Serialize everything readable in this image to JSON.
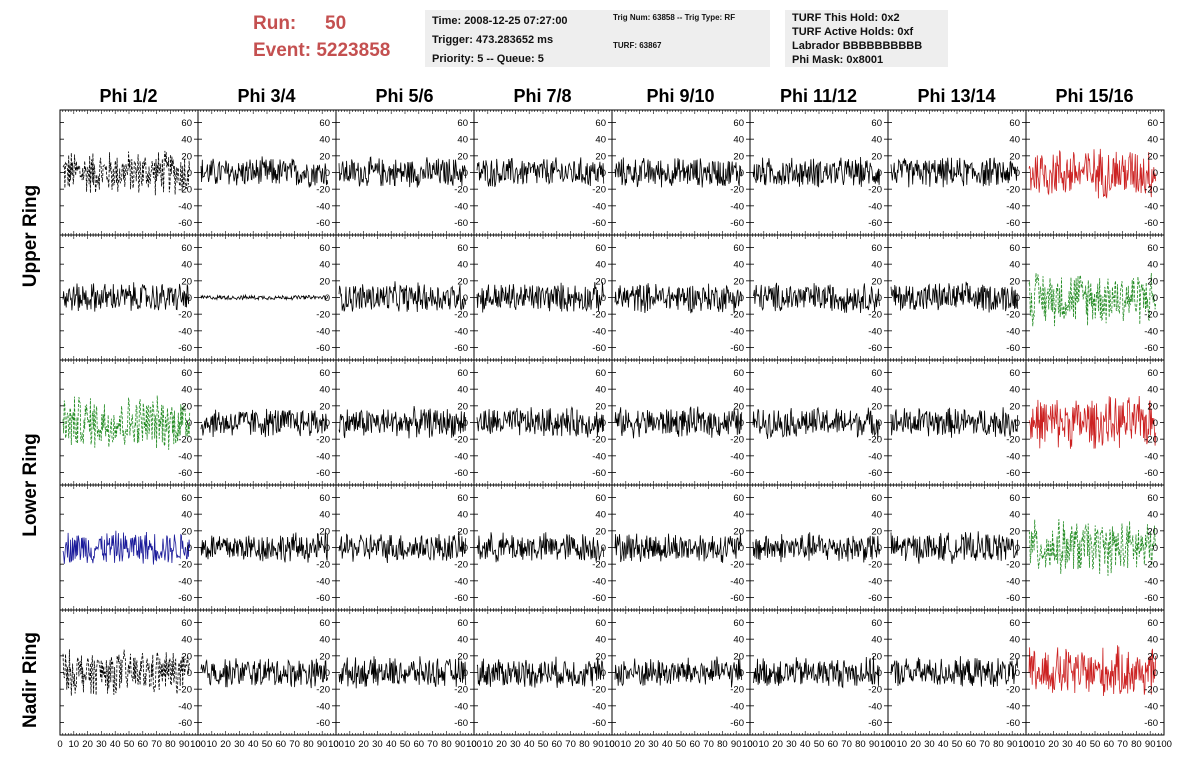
{
  "header": {
    "run_label": "Run:",
    "run_value": "50",
    "event_label": "Event:",
    "event_value": "5223858",
    "time": "Time: 2008-12-25 07:27:00",
    "trigger": "Trigger: 473.283652 ms",
    "priority_queue": "Priority: 5 -- Queue: 5",
    "trig_num_type": "Trig Num: 63858 -- Trig Type: RF",
    "turf": "TURF: 63867",
    "turf_this_hold": "TURF This Hold: 0x2",
    "turf_active_holds": "TURF Active Holds: 0xf",
    "labrador": "Labrador BBBBBBBBBB",
    "phi_mask": "Phi Mask: 0x8001"
  },
  "columns": [
    "Phi 1/2",
    "Phi 3/4",
    "Phi 5/6",
    "Phi 7/8",
    "Phi 9/10",
    "Phi 11/12",
    "Phi 13/14",
    "Phi 15/16"
  ],
  "row_labels": [
    "Upper Ring",
    "Lower Ring",
    "Nadir Ring"
  ],
  "y_ticks": [
    60,
    40,
    20,
    0,
    -20,
    -40,
    -60
  ],
  "x_ticks": [
    0,
    10,
    20,
    30,
    40,
    50,
    60,
    70,
    80,
    90,
    100
  ],
  "colors": {
    "header_red": "#c45050",
    "info_bg": "#eeeeee",
    "red_trace": "#cc2222",
    "green_trace": "#228b22",
    "blue_trace": "#1a1a9a",
    "black_trace": "#000000"
  },
  "traces": [
    [
      "black-dashed",
      "black",
      "black",
      "black",
      "black",
      "black",
      "black",
      "red"
    ],
    [
      "black",
      "black-small",
      "black",
      "black",
      "black",
      "black",
      "black",
      "green-dashed"
    ],
    [
      "green-dashed",
      "black",
      "black",
      "black",
      "black",
      "black",
      "black",
      "red"
    ],
    [
      "blue",
      "black",
      "black",
      "black",
      "black",
      "black",
      "black",
      "green-dashed"
    ],
    [
      "black-dashed",
      "black",
      "black",
      "black",
      "black",
      "black",
      "black",
      "red"
    ]
  ]
}
